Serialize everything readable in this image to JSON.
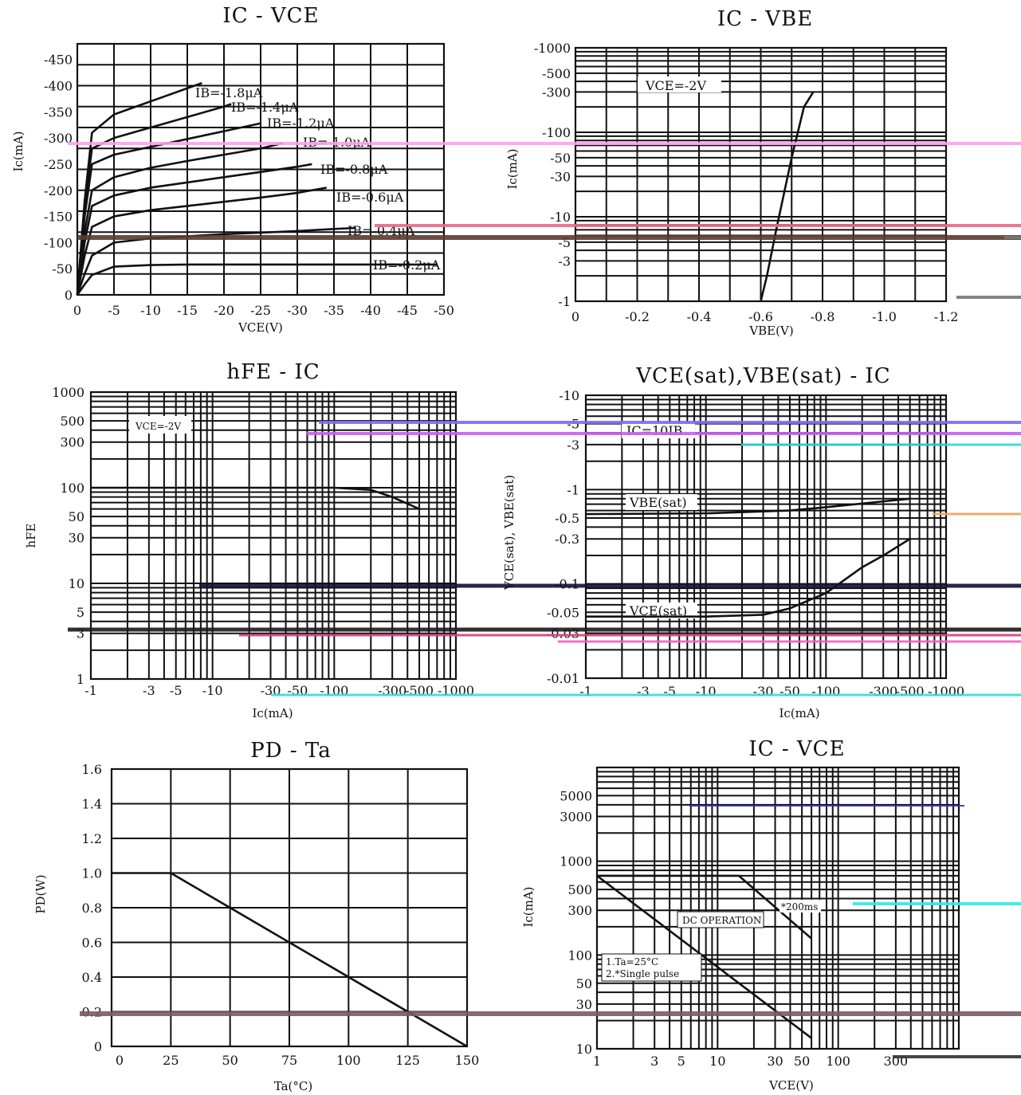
{
  "chart_data": [
    {
      "type": "line",
      "title": "IC - VCE",
      "xlabel": "VCE(V)",
      "ylabel": "Ic(mA)",
      "xlim": [
        0,
        -50
      ],
      "ylim": [
        0,
        -480
      ],
      "x_ticks": [
        "0",
        "-5",
        "-10",
        "-15",
        "-20",
        "-25",
        "-30",
        "-35",
        "-40",
        "-45",
        "-50"
      ],
      "y_ticks": [
        "0",
        "-50",
        "-100",
        "-150",
        "-200",
        "-250",
        "-300",
        "-350",
        "-400",
        "-450"
      ],
      "series": [
        {
          "name": "IB=-1.8μA",
          "x": [
            0,
            -1,
            -2,
            -5,
            -10,
            -15,
            -17
          ],
          "y": [
            0,
            -180,
            -310,
            -345,
            -370,
            -395,
            -405
          ]
        },
        {
          "name": "IB=-1.4μA",
          "x": [
            0,
            -1,
            -2,
            -5,
            -10,
            -15,
            -20,
            -21
          ],
          "y": [
            0,
            -170,
            -280,
            -300,
            -320,
            -340,
            -360,
            -365
          ]
        },
        {
          "name": "IB=-1.2μA",
          "x": [
            0,
            -1,
            -2,
            -5,
            -10,
            -15,
            -20,
            -25
          ],
          "y": [
            0,
            -150,
            -250,
            -268,
            -283,
            -298,
            -313,
            -328
          ]
        },
        {
          "name": "IB=-1.0μA",
          "x": [
            0,
            -1,
            -2,
            -5,
            -10,
            -15,
            -20,
            -25,
            -28
          ],
          "y": [
            0,
            -120,
            -200,
            -225,
            -243,
            -256,
            -268,
            -280,
            -290
          ]
        },
        {
          "name": "IB=-0.8μA",
          "x": [
            0,
            -1,
            -2,
            -5,
            -10,
            -15,
            -20,
            -25,
            -30,
            -32
          ],
          "y": [
            0,
            -100,
            -170,
            -190,
            -205,
            -215,
            -225,
            -235,
            -245,
            -250
          ]
        },
        {
          "name": "IB=-0.6μA",
          "x": [
            0,
            -1,
            -2,
            -5,
            -10,
            -15,
            -20,
            -25,
            -30,
            -34
          ],
          "y": [
            0,
            -75,
            -130,
            -150,
            -162,
            -170,
            -178,
            -186,
            -195,
            -205
          ]
        },
        {
          "name": "IB=-0.4μA",
          "x": [
            0,
            -1,
            -2,
            -5,
            -10,
            -15,
            -20,
            -25,
            -30,
            -35,
            -38
          ],
          "y": [
            0,
            -40,
            -75,
            -100,
            -108,
            -112,
            -116,
            -119,
            -122,
            -126,
            -128
          ]
        },
        {
          "name": "IB=-0.2μA",
          "x": [
            0,
            -1,
            -2,
            -5,
            -10,
            -15,
            -20,
            -25,
            -30,
            -35,
            -40,
            -45,
            -49
          ],
          "y": [
            0,
            -20,
            -38,
            -54,
            -57,
            -58,
            -58,
            -58,
            -58,
            -58,
            -58,
            -58,
            -58
          ]
        }
      ]
    },
    {
      "type": "line",
      "title": "IC - VBE",
      "xlabel": "VBE(V)",
      "ylabel": "Ic(mA)",
      "y_scale": "log",
      "xlim": [
        0,
        -1.2
      ],
      "ylim": [
        -1,
        -1000
      ],
      "x_ticks": [
        "0",
        "-0.2",
        "-0.4",
        "-0.6",
        "-0.8",
        "-1.0",
        "-1.2"
      ],
      "y_ticks": [
        "-1000",
        "-500",
        "-300",
        "-100",
        "-50",
        "-30",
        "-10",
        "-5",
        "-3",
        "-1"
      ],
      "annotation": "VCE=-2V",
      "series": [
        {
          "x": [
            -0.6,
            -0.62,
            -0.65,
            -0.7,
            -0.74,
            -0.77
          ],
          "y": [
            -1,
            -2,
            -7,
            -50,
            -200,
            -300
          ]
        }
      ]
    },
    {
      "type": "line",
      "title": "hFE - IC",
      "xlabel": "Ic(mA)",
      "ylabel": "hFE",
      "x_scale": "log",
      "y_scale": "log",
      "xlim": [
        -1,
        -1000
      ],
      "ylim": [
        1,
        1000
      ],
      "x_ticks": [
        "-1",
        "-3",
        "-5",
        "-10",
        "-30",
        "-50",
        "-100",
        "-300",
        "-500",
        "-1000"
      ],
      "y_ticks": [
        "1000",
        "500",
        "300",
        "100",
        "50",
        "30",
        "10",
        "5",
        "3",
        "1"
      ],
      "annotation": "VCE=-2V",
      "series": [
        {
          "x": [
            -1,
            -10,
            -50,
            -100,
            -200,
            -300,
            -500
          ],
          "y": [
            100,
            100,
            100,
            100,
            95,
            80,
            60
          ]
        }
      ]
    },
    {
      "type": "line",
      "title": "VCE(sat),VBE(sat) - IC",
      "xlabel": "Ic(mA)",
      "ylabel": "VCE(sat), VBE(sat)",
      "x_scale": "log",
      "y_scale": "log",
      "xlim": [
        -1,
        -1000
      ],
      "ylim": [
        -0.01,
        -10
      ],
      "x_ticks": [
        "-1",
        "-3",
        "-5",
        "-10",
        "-30",
        "-50",
        "-100",
        "-300",
        "-500",
        "-1000"
      ],
      "y_ticks": [
        "-10",
        "-5",
        "-3",
        "-1",
        "-0.5",
        "-0.3",
        "-0.1",
        "-0.05",
        "-0.03",
        "-0.01"
      ],
      "annotation": "IC=10IB",
      "series": [
        {
          "name": "VBE(sat)",
          "x": [
            -1,
            -10,
            -50,
            -100,
            -300,
            -500
          ],
          "y": [
            -0.55,
            -0.56,
            -0.6,
            -0.65,
            -0.75,
            -0.8
          ]
        },
        {
          "name": "VCE(sat)",
          "x": [
            -1,
            -10,
            -30,
            -50,
            -100,
            -200,
            -300,
            -500
          ],
          "y": [
            -0.045,
            -0.045,
            -0.047,
            -0.055,
            -0.08,
            -0.15,
            -0.2,
            -0.3
          ]
        }
      ]
    },
    {
      "type": "line",
      "title": "PD - Ta",
      "xlabel": "Ta(°C)",
      "ylabel": "PD(W)",
      "xlim": [
        0,
        150
      ],
      "ylim": [
        0,
        1.6
      ],
      "x_ticks": [
        "0",
        "25",
        "50",
        "75",
        "100",
        "125",
        "150"
      ],
      "y_ticks": [
        "1.6",
        "1.4",
        "1.2",
        "1.0",
        "0.8",
        "0.6",
        "0.4",
        "0.2",
        "0"
      ],
      "series": [
        {
          "x": [
            0,
            25,
            150
          ],
          "y": [
            1.0,
            1.0,
            0
          ]
        }
      ]
    },
    {
      "type": "line",
      "title": "IC - VCE",
      "xlabel": "VCE(V)",
      "ylabel": "Ic(mA)",
      "x_scale": "log",
      "y_scale": "log",
      "xlim": [
        1,
        1000
      ],
      "ylim": [
        10,
        10000
      ],
      "x_ticks": [
        "1",
        "3",
        "5",
        "10",
        "30",
        "50",
        "100",
        "300"
      ],
      "y_ticks": [
        "5000",
        "3000",
        "1000",
        "500",
        "300",
        "100",
        "50",
        "30",
        "10"
      ],
      "annotations": [
        "DC OPERATION",
        "*200ms",
        "1.Ta=25°C",
        "2.*Single pulse"
      ],
      "series": [
        {
          "name": "DC OPERATION",
          "x": [
            1,
            60
          ],
          "y": [
            700,
            13
          ]
        },
        {
          "name": "*200ms",
          "x": [
            1,
            15,
            60
          ],
          "y": [
            700,
            700,
            150
          ]
        }
      ]
    }
  ],
  "labels": {
    "ib": [
      "IB=-1.8μA",
      "IB=-1.4μA",
      "IB=-1.2μA",
      "IB=-1.0μA",
      "IB=-0.8μA",
      "IB=-0.6μA",
      "IB=-0.4μA",
      "IB=-0.2μA"
    ],
    "vce_2v": "VCE=-2V",
    "ic10ib": "IC=10IB",
    "vbesat": "VBE(sat)",
    "vcesat": "VCE(sat)",
    "dcop": "DC OPERATION",
    "ms200": "*200ms",
    "note1": "1.Ta=25°C",
    "note2": "2.*Single pulse"
  }
}
